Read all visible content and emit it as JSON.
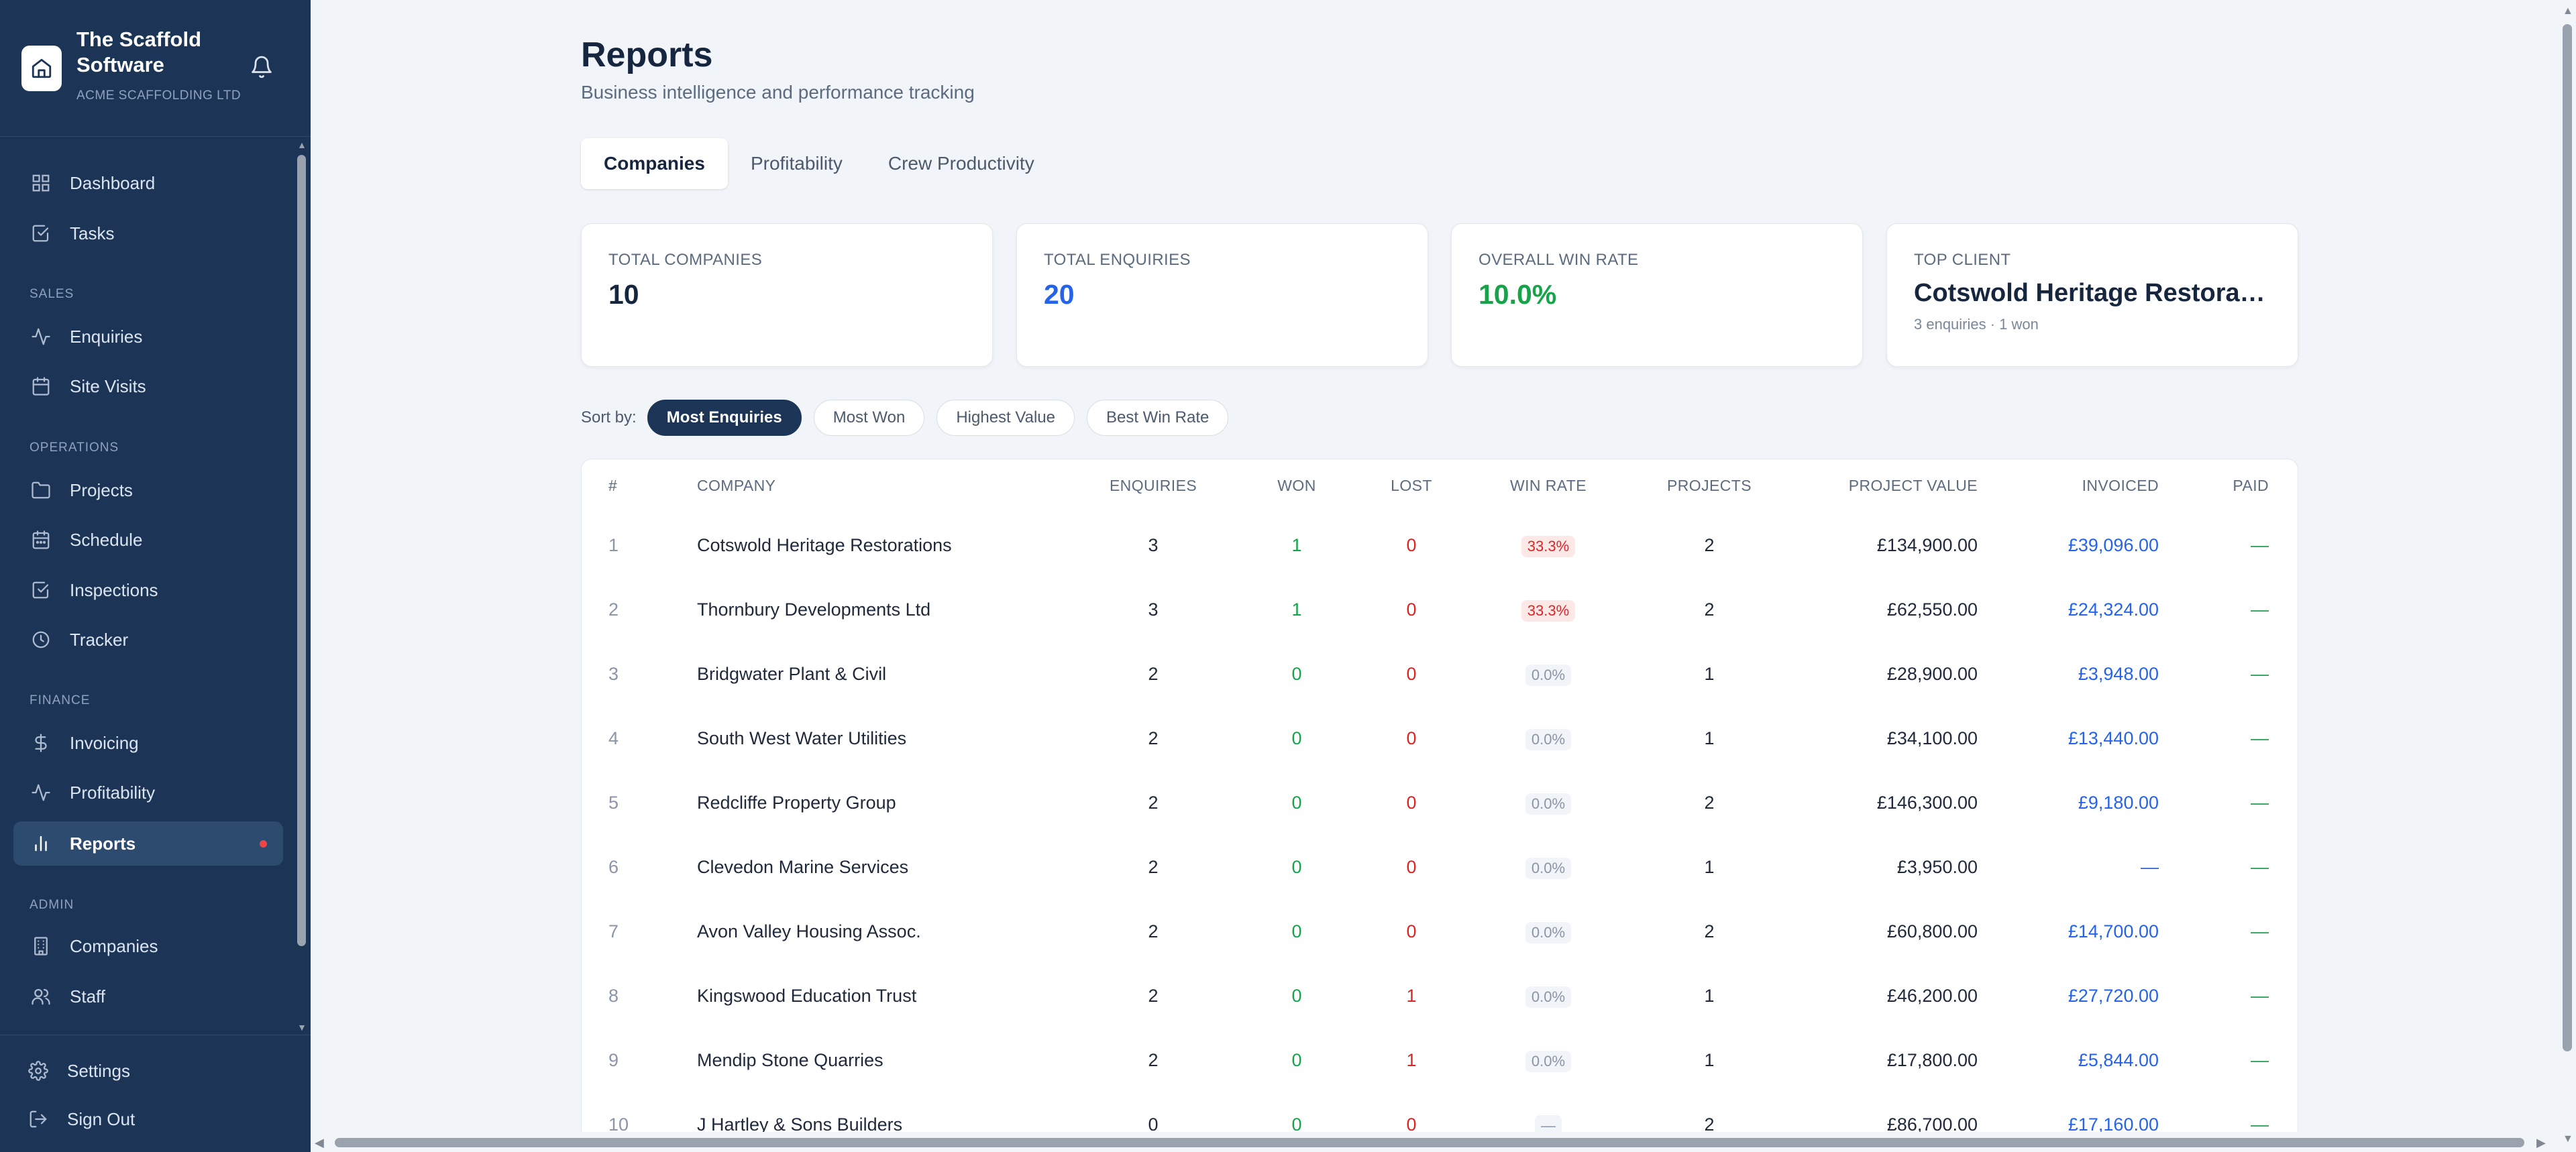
{
  "brand": {
    "name": "The Scaffold Software",
    "company": "ACME SCAFFOLDING LTD"
  },
  "sidebar": {
    "sections": {
      "sales": "SALES",
      "operations": "OPERATIONS",
      "finance": "FINANCE",
      "admin": "ADMIN"
    },
    "items": {
      "dashboard": "Dashboard",
      "tasks": "Tasks",
      "enquiries": "Enquiries",
      "site_visits": "Site Visits",
      "projects": "Projects",
      "schedule": "Schedule",
      "inspections": "Inspections",
      "tracker": "Tracker",
      "invoicing": "Invoicing",
      "profitability": "Profitability",
      "reports": "Reports",
      "companies": "Companies",
      "staff": "Staff",
      "settings": "Settings",
      "sign_out": "Sign Out"
    },
    "active": "reports"
  },
  "header": {
    "title": "Reports",
    "subtitle": "Business intelligence and performance tracking"
  },
  "tabs": [
    "Companies",
    "Profitability",
    "Crew Productivity"
  ],
  "active_tab": "Companies",
  "stats": {
    "total_companies": {
      "label": "TOTAL COMPANIES",
      "value": "10"
    },
    "total_enquiries": {
      "label": "TOTAL ENQUIRIES",
      "value": "20"
    },
    "win_rate": {
      "label": "OVERALL WIN RATE",
      "value": "10.0%"
    },
    "top_client": {
      "label": "TOP CLIENT",
      "value": "Cotswold Heritage Restoratio...",
      "meta": "3 enquiries · 1 won"
    }
  },
  "sort": {
    "label": "Sort by:",
    "options": [
      "Most Enquiries",
      "Most Won",
      "Highest Value",
      "Best Win Rate"
    ],
    "active": "Most Enquiries"
  },
  "table": {
    "columns": [
      "#",
      "COMPANY",
      "ENQUIRIES",
      "WON",
      "LOST",
      "WIN RATE",
      "PROJECTS",
      "PROJECT VALUE",
      "INVOICED",
      "PAID"
    ],
    "rows": [
      {
        "rank": "1",
        "company": "Cotswold Heritage Restorations",
        "enquiries": "3",
        "won": "1",
        "lost": "0",
        "win_rate": "33.3%",
        "win_rate_style": "red",
        "projects": "2",
        "value": "£134,900.00",
        "invoiced": "£39,096.00",
        "paid": "—"
      },
      {
        "rank": "2",
        "company": "Thornbury Developments Ltd",
        "enquiries": "3",
        "won": "1",
        "lost": "0",
        "win_rate": "33.3%",
        "win_rate_style": "red",
        "projects": "2",
        "value": "£62,550.00",
        "invoiced": "£24,324.00",
        "paid": "—"
      },
      {
        "rank": "3",
        "company": "Bridgwater Plant & Civil",
        "enquiries": "2",
        "won": "0",
        "lost": "0",
        "win_rate": "0.0%",
        "win_rate_style": "gray",
        "projects": "1",
        "value": "£28,900.00",
        "invoiced": "£3,948.00",
        "paid": "—"
      },
      {
        "rank": "4",
        "company": "South West Water Utilities",
        "enquiries": "2",
        "won": "0",
        "lost": "0",
        "win_rate": "0.0%",
        "win_rate_style": "gray",
        "projects": "1",
        "value": "£34,100.00",
        "invoiced": "£13,440.00",
        "paid": "—"
      },
      {
        "rank": "5",
        "company": "Redcliffe Property Group",
        "enquiries": "2",
        "won": "0",
        "lost": "0",
        "win_rate": "0.0%",
        "win_rate_style": "gray",
        "projects": "2",
        "value": "£146,300.00",
        "invoiced": "£9,180.00",
        "paid": "—"
      },
      {
        "rank": "6",
        "company": "Clevedon Marine Services",
        "enquiries": "2",
        "won": "0",
        "lost": "0",
        "win_rate": "0.0%",
        "win_rate_style": "gray",
        "projects": "1",
        "value": "£3,950.00",
        "invoiced": "—",
        "paid": "—"
      },
      {
        "rank": "7",
        "company": "Avon Valley Housing Assoc.",
        "enquiries": "2",
        "won": "0",
        "lost": "0",
        "win_rate": "0.0%",
        "win_rate_style": "gray",
        "projects": "2",
        "value": "£60,800.00",
        "invoiced": "£14,700.00",
        "paid": "—"
      },
      {
        "rank": "8",
        "company": "Kingswood Education Trust",
        "enquiries": "2",
        "won": "0",
        "lost": "1",
        "win_rate": "0.0%",
        "win_rate_style": "gray",
        "projects": "1",
        "value": "£46,200.00",
        "invoiced": "£27,720.00",
        "paid": "—"
      },
      {
        "rank": "9",
        "company": "Mendip Stone Quarries",
        "enquiries": "2",
        "won": "0",
        "lost": "1",
        "win_rate": "0.0%",
        "win_rate_style": "gray",
        "projects": "1",
        "value": "£17,800.00",
        "invoiced": "£5,844.00",
        "paid": "—"
      },
      {
        "rank": "10",
        "company": "J Hartley & Sons Builders",
        "enquiries": "0",
        "won": "0",
        "lost": "0",
        "win_rate": "—",
        "win_rate_style": "gray",
        "projects": "2",
        "value": "£86,700.00",
        "invoiced": "£17,160.00",
        "paid": "—"
      }
    ]
  },
  "colors": {
    "sidebar": "#1c3556",
    "accent_blue": "#2563eb",
    "success": "#16a34a",
    "danger": "#dc2626"
  }
}
